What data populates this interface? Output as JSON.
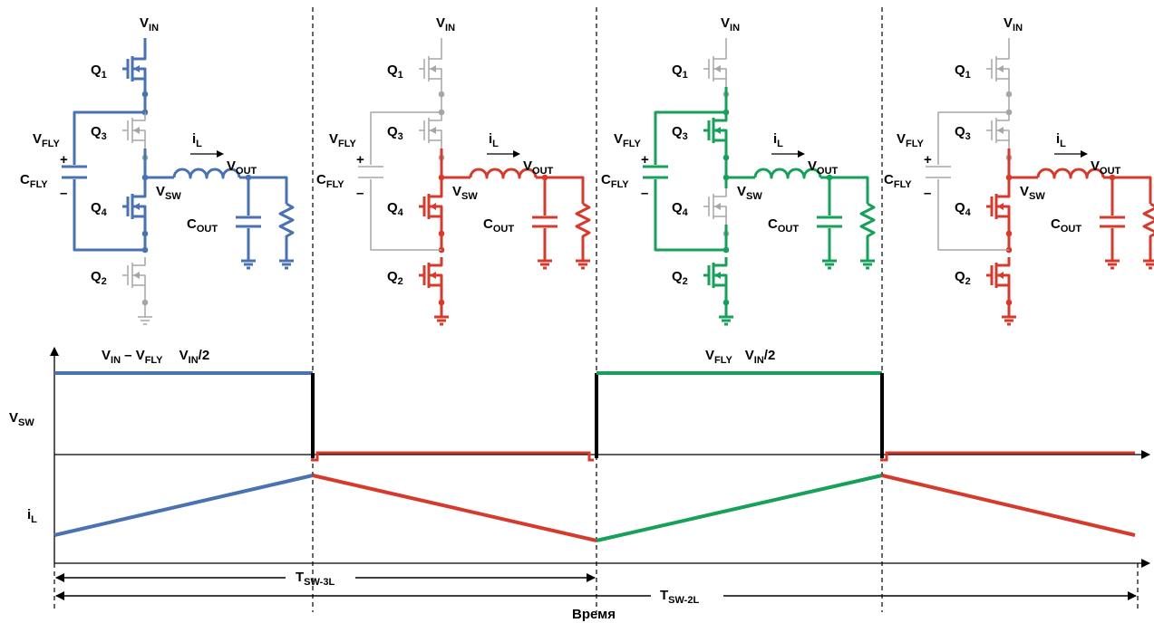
{
  "colors": {
    "blue": "#4a72b0",
    "red": "#d63a2c",
    "green": "#16a05a",
    "gray": "#a6a6a6",
    "black": "#000000"
  },
  "circuit_labels": {
    "vin": "V",
    "vin_sub": "IN",
    "q1": "Q",
    "q1_sub": "1",
    "q2": "Q",
    "q2_sub": "2",
    "q3": "Q",
    "q3_sub": "3",
    "q4": "Q",
    "q4_sub": "4",
    "vfly": "V",
    "vfly_sub": "FLY",
    "cfly": "C",
    "cfly_sub": "FLY",
    "il": "i",
    "il_sub": "L",
    "vout": "V",
    "vout_sub": "OUT",
    "vsw": "V",
    "vsw_sub": "SW",
    "cout": "C",
    "cout_sub": "OUT",
    "plus": "+",
    "minus": "–"
  },
  "phases": [
    {
      "name": "phase-1",
      "color": "blue",
      "active": [
        "q1",
        "q4"
      ]
    },
    {
      "name": "phase-2",
      "color": "red",
      "active": [
        "q4",
        "q2"
      ]
    },
    {
      "name": "phase-3",
      "color": "green",
      "active": [
        "q3",
        "q2"
      ]
    },
    {
      "name": "phase-4",
      "color": "red",
      "active": [
        "q4",
        "q2"
      ]
    }
  ],
  "waveform": {
    "level_label_1": {
      "a": "V",
      "a_sub": "IN",
      "b": " – V",
      "b_sub": "FLY",
      "c": "V",
      "c_sub": "IN",
      "d": "/2"
    },
    "level_label_3": {
      "a": "V",
      "a_sub": "FLY",
      "c": "V",
      "c_sub": "IN",
      "d": "/2"
    },
    "vsw_axis": {
      "a": "V",
      "a_sub": "SW"
    },
    "il_axis": {
      "a": "i",
      "a_sub": "L"
    },
    "tsw3l": {
      "a": "T",
      "a_sub": "SW-3L"
    },
    "tsw2l": {
      "a": "T",
      "a_sub": "SW-2L"
    },
    "time_label": "Время"
  }
}
